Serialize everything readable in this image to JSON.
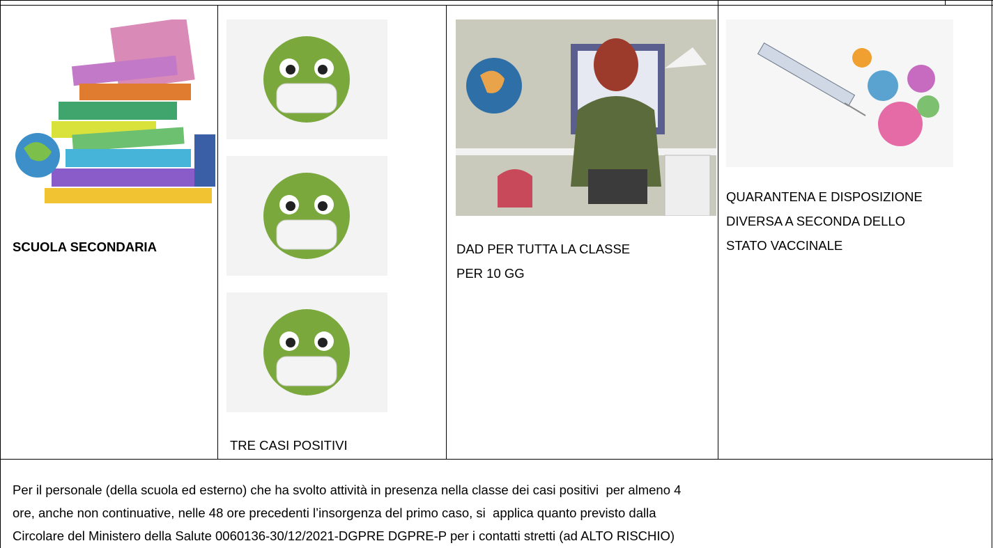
{
  "table": {
    "row": {
      "level": "SCUOLA SECONDARIA",
      "cases": "TRE CASI POSITIVI",
      "measure": [
        "DAD PER TUTTA LA CLASSE",
        "PER 10 GG"
      ],
      "quarantine": [
        "QUARANTENA E DISPOSIZIONE",
        "DIVERSA A SECONDA DELLO",
        "STATO VACCINALE"
      ]
    },
    "note": [
      "Per il personale (della scuola ed esterno) che ha svolto attività in presenza nella classe dei casi positivi  per almeno 4",
      "ore, anche non continuative, nelle 48 ore precedenti l’insorgenza del primo caso, si  applica quanto previsto dalla",
      "Circolare del Ministero della Salute 0060136-30/12/2021-DGPRE DGPRE-P per i contatti stretti (ad ALTO RISCHIO)"
    ]
  }
}
